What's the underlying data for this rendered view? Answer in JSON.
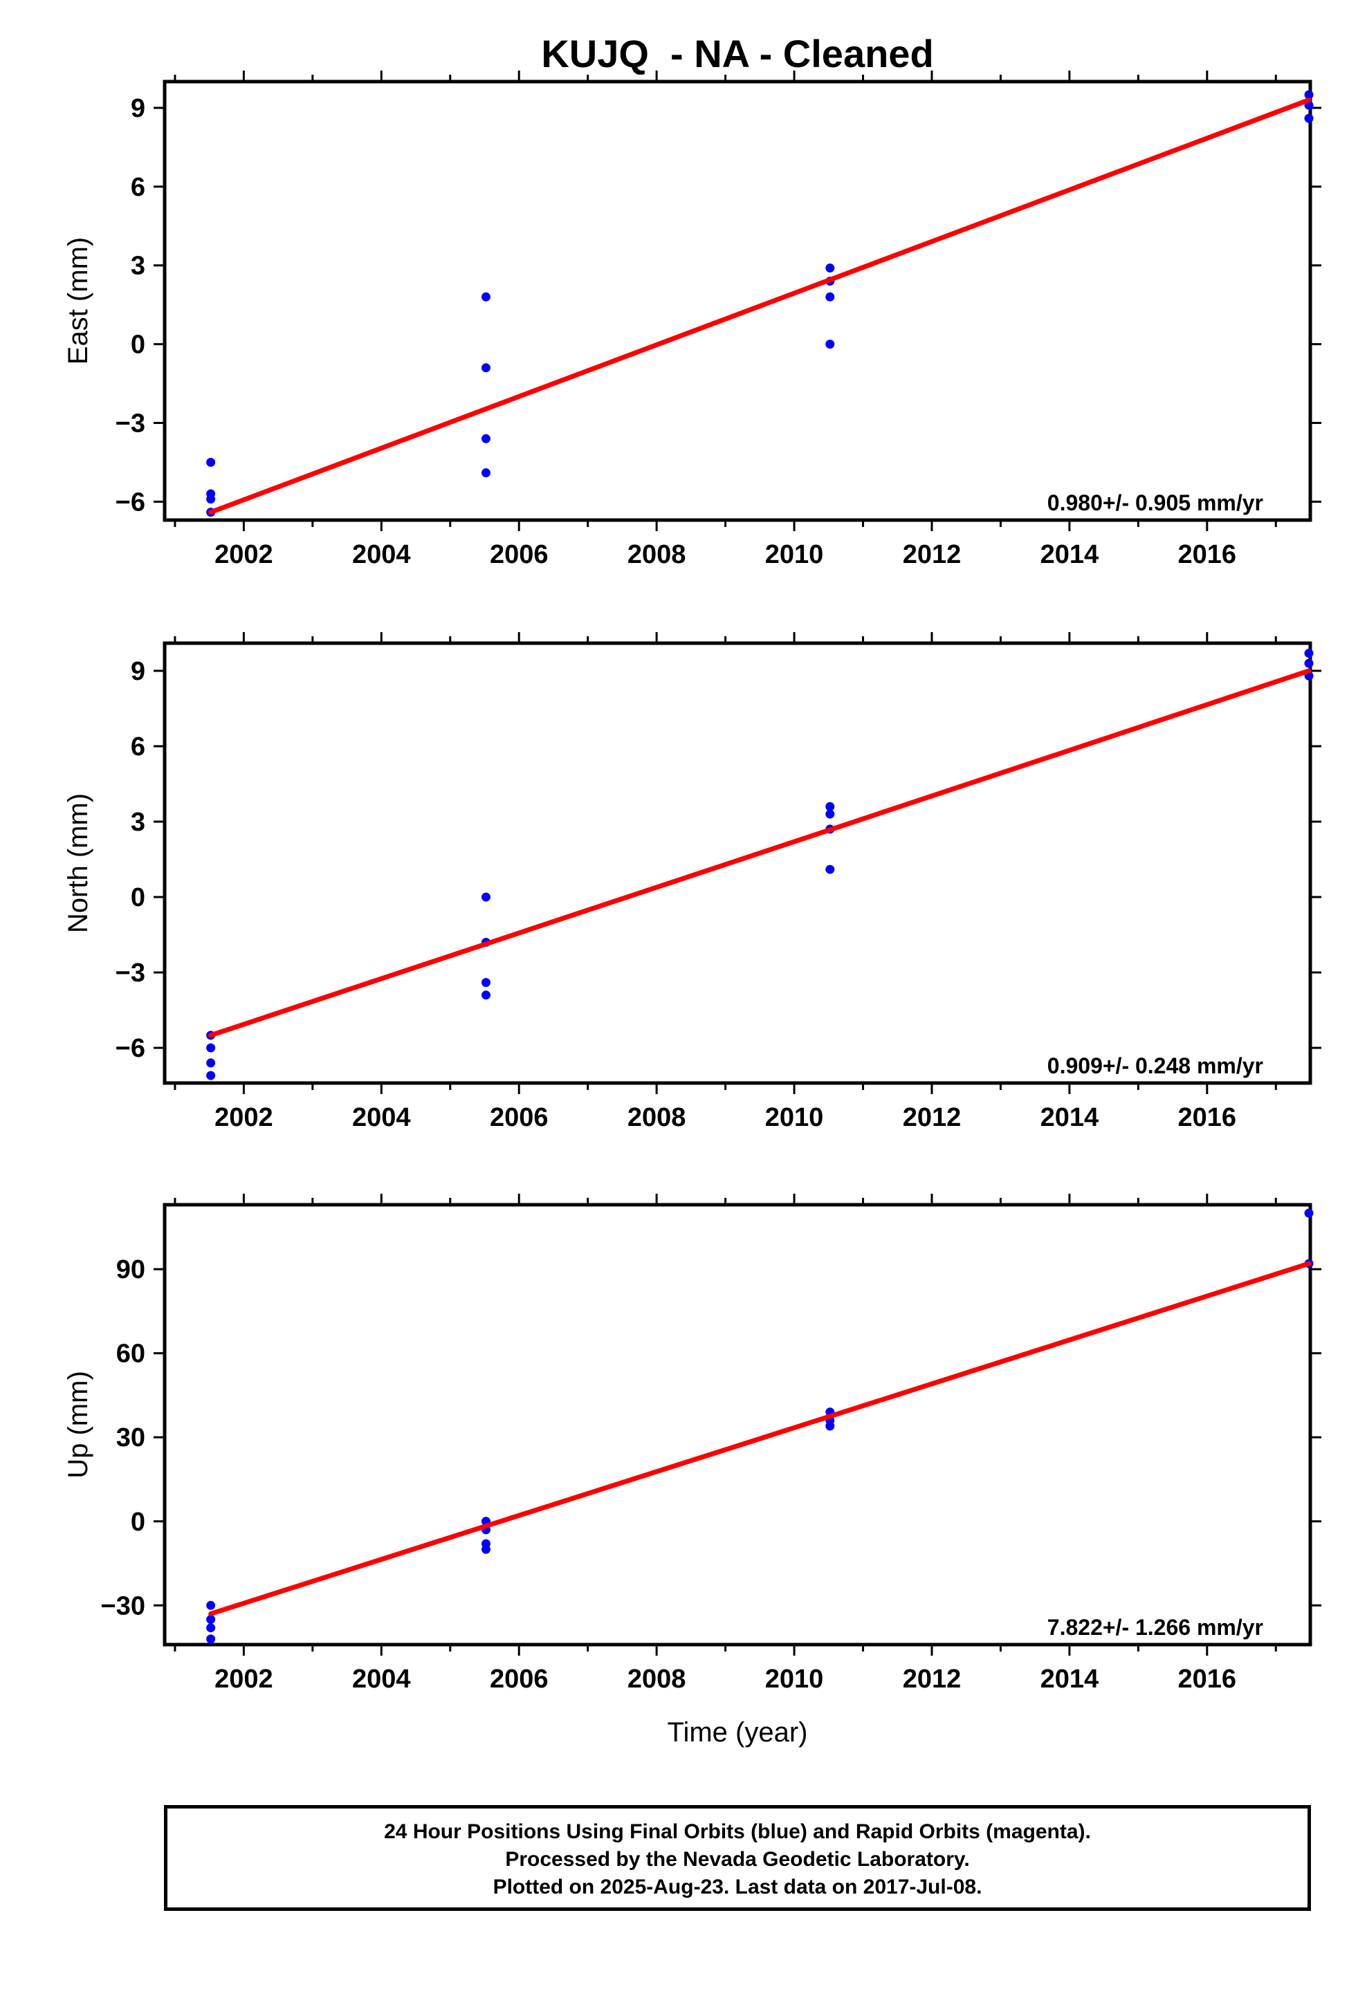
{
  "title": "KUJQ  - NA - Cleaned",
  "xlabel": "Time (year)",
  "caption": {
    "line1": "24 Hour Positions Using Final Orbits (blue) and Rapid Orbits (magenta).",
    "line2": "Processed by the Nevada Geodetic Laboratory.",
    "line3": "Plotted on 2025-Aug-23. Last data on 2017-Jul-08."
  },
  "colors": {
    "points": "#0000ff",
    "fit": "#ff0000",
    "axes": "#000000"
  },
  "chart_data": [
    {
      "type": "scatter",
      "ylabel": "East (mm)",
      "xlim": [
        2000.85,
        2017.5
      ],
      "ylim": [
        -6.7,
        10.0
      ],
      "xticks": [
        2002,
        2004,
        2006,
        2008,
        2010,
        2012,
        2014,
        2016
      ],
      "yticks": [
        -6,
        -3,
        0,
        3,
        6,
        9
      ],
      "rate_label": "0.980+/- 0.905 mm/yr",
      "points": [
        {
          "x": 2001.52,
          "y": -4.5
        },
        {
          "x": 2001.52,
          "y": -5.7
        },
        {
          "x": 2001.52,
          "y": -5.9
        },
        {
          "x": 2001.52,
          "y": -6.4
        },
        {
          "x": 2005.52,
          "y": 1.8
        },
        {
          "x": 2005.52,
          "y": -0.9
        },
        {
          "x": 2005.52,
          "y": -3.6
        },
        {
          "x": 2005.52,
          "y": -4.9
        },
        {
          "x": 2010.52,
          "y": 2.9
        },
        {
          "x": 2010.52,
          "y": 2.4
        },
        {
          "x": 2010.52,
          "y": 1.8
        },
        {
          "x": 2010.52,
          "y": 0.0
        },
        {
          "x": 2017.48,
          "y": 9.5
        },
        {
          "x": 2017.48,
          "y": 9.1
        },
        {
          "x": 2017.48,
          "y": 8.6
        }
      ],
      "fit": {
        "x": [
          2001.52,
          2017.48
        ],
        "y": [
          -6.4,
          9.3
        ]
      }
    },
    {
      "type": "scatter",
      "ylabel": "North (mm)",
      "xlim": [
        2000.85,
        2017.5
      ],
      "ylim": [
        -7.4,
        10.1
      ],
      "xticks": [
        2002,
        2004,
        2006,
        2008,
        2010,
        2012,
        2014,
        2016
      ],
      "yticks": [
        -6,
        -3,
        0,
        3,
        6,
        9
      ],
      "rate_label": "0.909+/- 0.248 mm/yr",
      "points": [
        {
          "x": 2001.52,
          "y": -5.5
        },
        {
          "x": 2001.52,
          "y": -6.0
        },
        {
          "x": 2001.52,
          "y": -6.6
        },
        {
          "x": 2001.52,
          "y": -7.1
        },
        {
          "x": 2005.52,
          "y": 0.0
        },
        {
          "x": 2005.52,
          "y": -1.8
        },
        {
          "x": 2005.52,
          "y": -3.4
        },
        {
          "x": 2005.52,
          "y": -3.9
        },
        {
          "x": 2010.52,
          "y": 3.6
        },
        {
          "x": 2010.52,
          "y": 3.3
        },
        {
          "x": 2010.52,
          "y": 2.7
        },
        {
          "x": 2010.52,
          "y": 1.1
        },
        {
          "x": 2017.48,
          "y": 9.7
        },
        {
          "x": 2017.48,
          "y": 9.3
        },
        {
          "x": 2017.48,
          "y": 8.8
        }
      ],
      "fit": {
        "x": [
          2001.52,
          2017.48
        ],
        "y": [
          -5.5,
          9.0
        ]
      }
    },
    {
      "type": "scatter",
      "ylabel": "Up (mm)",
      "xlim": [
        2000.85,
        2017.5
      ],
      "ylim": [
        -44,
        113
      ],
      "xticks": [
        2002,
        2004,
        2006,
        2008,
        2010,
        2012,
        2014,
        2016
      ],
      "yticks": [
        -30,
        0,
        30,
        60,
        90
      ],
      "rate_label": "7.822+/- 1.266 mm/yr",
      "points": [
        {
          "x": 2001.52,
          "y": -30
        },
        {
          "x": 2001.52,
          "y": -35
        },
        {
          "x": 2001.52,
          "y": -38
        },
        {
          "x": 2001.52,
          "y": -42
        },
        {
          "x": 2005.52,
          "y": 0
        },
        {
          "x": 2005.52,
          "y": -3
        },
        {
          "x": 2005.52,
          "y": -8
        },
        {
          "x": 2005.52,
          "y": -10
        },
        {
          "x": 2010.52,
          "y": 39
        },
        {
          "x": 2010.52,
          "y": 36
        },
        {
          "x": 2010.52,
          "y": 34
        },
        {
          "x": 2017.48,
          "y": 110
        },
        {
          "x": 2017.48,
          "y": 92
        }
      ],
      "fit": {
        "x": [
          2001.52,
          2017.48
        ],
        "y": [
          -33,
          92
        ]
      }
    }
  ]
}
